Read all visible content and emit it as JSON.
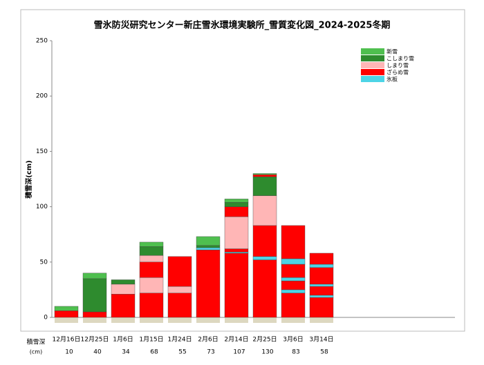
{
  "chart_data": {
    "type": "stacked-bar",
    "title": "雪氷防災研究センター新庄雪氷環境実験所_雪質変化図_2024-2025冬期",
    "y_label": "積雪深(cm)",
    "ylim": [
      0,
      250
    ],
    "yticks": [
      0,
      50,
      100,
      150,
      200,
      250
    ],
    "depth_row_label": "積雪深",
    "depth_row_unit": "(cm)",
    "categories": [
      "12月16日",
      "12月25日",
      "1月6日",
      "1月15日",
      "1月24日",
      "2月6日",
      "2月14日",
      "2月25日",
      "3月6日",
      "3月14日"
    ],
    "depths": [
      10,
      40,
      34,
      68,
      55,
      73,
      107,
      130,
      83,
      58
    ],
    "layer_types": [
      {
        "name": "新雪",
        "color": "#4fbf4f"
      },
      {
        "name": "こしまり雪",
        "color": "#2e8b2e"
      },
      {
        "name": "しまり雪",
        "color": "#ffb6b6"
      },
      {
        "name": "ざらめ雪",
        "color": "#ff0000"
      },
      {
        "name": "氷板",
        "color": "#4dd4e6"
      }
    ],
    "profiles": [
      [
        {
          "type": 3,
          "value": 6
        },
        {
          "type": 0,
          "value": 4
        }
      ],
      [
        {
          "type": 3,
          "value": 5
        },
        {
          "type": 1,
          "value": 30
        },
        {
          "type": 0,
          "value": 5
        }
      ],
      [
        {
          "type": 3,
          "value": 21
        },
        {
          "type": 2,
          "value": 9
        },
        {
          "type": 1,
          "value": 4
        }
      ],
      [
        {
          "type": 3,
          "value": 22
        },
        {
          "type": 2,
          "value": 14
        },
        {
          "type": 3,
          "value": 14
        },
        {
          "type": 2,
          "value": 6
        },
        {
          "type": 1,
          "value": 8
        },
        {
          "type": 0,
          "value": 4
        }
      ],
      [
        {
          "type": 3,
          "value": 22
        },
        {
          "type": 2,
          "value": 6
        },
        {
          "type": 3,
          "value": 27
        }
      ],
      [
        {
          "type": 3,
          "value": 61
        },
        {
          "type": 4,
          "value": 2
        },
        {
          "type": 1,
          "value": 2
        },
        {
          "type": 0,
          "value": 8
        }
      ],
      [
        {
          "type": 3,
          "value": 58
        },
        {
          "type": 4,
          "value": 1
        },
        {
          "type": 3,
          "value": 3
        },
        {
          "type": 2,
          "value": 29
        },
        {
          "type": 3,
          "value": 9
        },
        {
          "type": 1,
          "value": 4
        },
        {
          "type": 0,
          "value": 3
        }
      ],
      [
        {
          "type": 3,
          "value": 52
        },
        {
          "type": 4,
          "value": 3
        },
        {
          "type": 3,
          "value": 28
        },
        {
          "type": 2,
          "value": 27
        },
        {
          "type": 1,
          "value": 17
        },
        {
          "type": 3,
          "value": 2
        },
        {
          "type": 0,
          "value": 1
        }
      ],
      [
        {
          "type": 3,
          "value": 22
        },
        {
          "type": 4,
          "value": 3
        },
        {
          "type": 3,
          "value": 8
        },
        {
          "type": 4,
          "value": 3
        },
        {
          "type": 3,
          "value": 12
        },
        {
          "type": 4,
          "value": 5
        },
        {
          "type": 3,
          "value": 30
        }
      ],
      [
        {
          "type": 3,
          "value": 18
        },
        {
          "type": 4,
          "value": 2
        },
        {
          "type": 3,
          "value": 8
        },
        {
          "type": 4,
          "value": 2
        },
        {
          "type": 3,
          "value": 15
        },
        {
          "type": 4,
          "value": 3
        },
        {
          "type": 3,
          "value": 10
        }
      ]
    ]
  }
}
